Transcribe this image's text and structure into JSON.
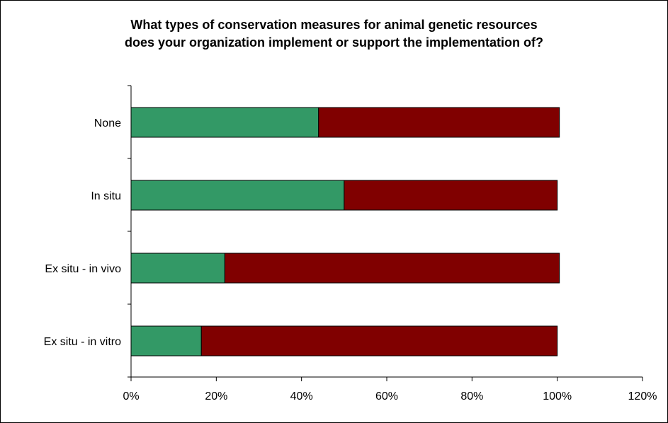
{
  "chart_data": {
    "type": "bar",
    "orientation": "horizontal",
    "stacked": true,
    "title_lines": [
      "What types of conservation measures for animal genetic resources",
      "does your organization implement or support the implementation of?"
    ],
    "categories": [
      "None",
      "In situ",
      "Ex situ - in vivo",
      "Ex situ - in vitro"
    ],
    "series": [
      {
        "color": "#339966",
        "values": [
          0.44,
          0.5,
          0.22,
          0.165
        ]
      },
      {
        "color": "#800000",
        "values": [
          0.565,
          0.5,
          0.785,
          0.835
        ]
      }
    ],
    "xlim": [
      0,
      1.2
    ],
    "xticks": [
      0,
      0.2,
      0.4,
      0.6,
      0.8,
      1.0,
      1.2
    ],
    "xtick_labels": [
      "0%",
      "20%",
      "40%",
      "60%",
      "80%",
      "100%",
      "120%"
    ],
    "grid": false,
    "legend": "none"
  }
}
